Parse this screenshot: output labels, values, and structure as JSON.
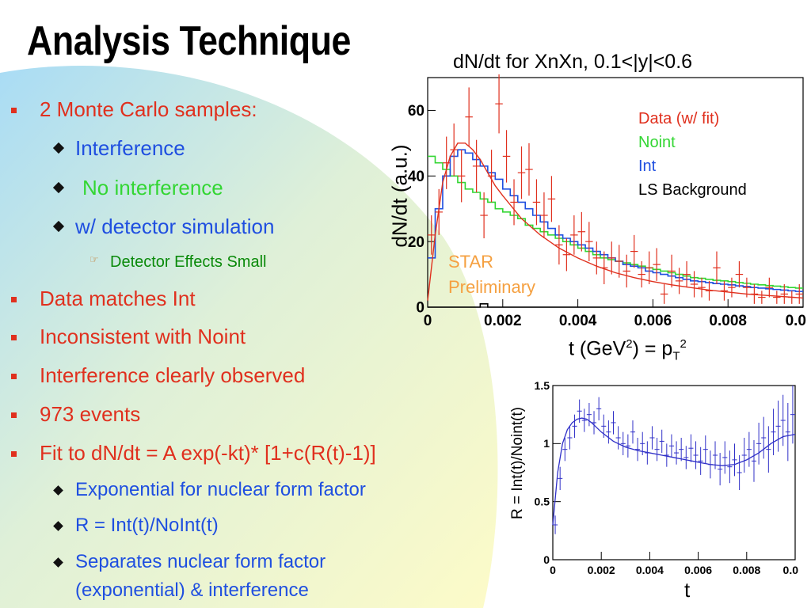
{
  "slide": {
    "title": "Analysis Technique",
    "bullets": {
      "b1": "2 Monte Carlo samples:",
      "b1a": "Interference",
      "b1b": "No interference",
      "b1c": "w/ detector simulation",
      "b1c_i": "Detector Effects Small",
      "b2": "Data matches Int",
      "b3": "Inconsistent with Noint",
      "b4": "Interference clearly observed",
      "b5": "973 events",
      "b6": "Fit to dN/dt = A exp(-kt)* [1+c(R(t)-1)]",
      "b6a": "Exponential for nuclear form factor",
      "b6b": "R = Int(t)/NoInt(t)",
      "b6c1": "Separates nuclear form factor",
      "b6c2": "(exponential) & interference"
    },
    "colors": {
      "red": "#e0301e",
      "blue": "#1f4fe0",
      "green": "#33d633",
      "dark_green": "#0a8a0a",
      "orange": "#f5a040"
    }
  },
  "chart_data": [
    {
      "type": "line",
      "title": "dN/dt for XnXn, 0.1<|y|<0.6",
      "xlabel": "t (GeV²) = pT²",
      "ylabel": "dN/dt (a.u.)",
      "xlim": [
        0,
        0.01
      ],
      "ylim": [
        0,
        70
      ],
      "x_ticks": [
        "0",
        "0.002",
        "0.004",
        "0.006",
        "0.008",
        "0.0"
      ],
      "y_ticks": [
        "0",
        "20",
        "40",
        "60"
      ],
      "legend": [
        "Data (w/ fit)",
        "Noint",
        "Int",
        "LS Background"
      ],
      "annotation": [
        "STAR",
        "Preliminary"
      ],
      "series": [
        {
          "name": "Data (w/ fit)",
          "color": "#e0301e",
          "points": [
            [
              0.0001,
              22,
              6
            ],
            [
              0.0003,
              29,
              7
            ],
            [
              0.0005,
              44,
              8
            ],
            [
              0.0007,
              48,
              8
            ],
            [
              0.0009,
              40,
              8
            ],
            [
              0.0011,
              58,
              9
            ],
            [
              0.0013,
              43,
              8
            ],
            [
              0.0015,
              28,
              7
            ],
            [
              0.0017,
              40,
              8
            ],
            [
              0.0019,
              62,
              9
            ],
            [
              0.0021,
              46,
              8
            ],
            [
              0.0023,
              32,
              7
            ],
            [
              0.0025,
              41,
              8
            ],
            [
              0.0027,
              42,
              8
            ],
            [
              0.0029,
              32,
              7
            ],
            [
              0.0031,
              28,
              7
            ],
            [
              0.0033,
              33,
              7
            ],
            [
              0.0035,
              19,
              6
            ],
            [
              0.0037,
              16,
              5
            ],
            [
              0.0039,
              22,
              6
            ],
            [
              0.0041,
              23,
              6
            ],
            [
              0.0043,
              20,
              6
            ],
            [
              0.0045,
              15,
              5
            ],
            [
              0.0047,
              12,
              5
            ],
            [
              0.0049,
              15,
              5
            ],
            [
              0.0051,
              14,
              5
            ],
            [
              0.0053,
              11,
              5
            ],
            [
              0.0055,
              17,
              5
            ],
            [
              0.0057,
              10,
              4
            ],
            [
              0.0059,
              12,
              5
            ],
            [
              0.0061,
              13,
              5
            ],
            [
              0.0063,
              4,
              3
            ],
            [
              0.0065,
              11,
              5
            ],
            [
              0.0067,
              8,
              4
            ],
            [
              0.0069,
              10,
              4
            ],
            [
              0.0071,
              7,
              4
            ],
            [
              0.0073,
              6,
              3
            ],
            [
              0.0075,
              5,
              3
            ],
            [
              0.0077,
              12,
              5
            ],
            [
              0.0079,
              5,
              3
            ],
            [
              0.0081,
              6,
              3
            ],
            [
              0.0083,
              10,
              4
            ],
            [
              0.0085,
              6,
              3
            ],
            [
              0.0087,
              4,
              3
            ],
            [
              0.0089,
              3,
              2
            ],
            [
              0.0091,
              6,
              3
            ],
            [
              0.0093,
              3,
              2
            ],
            [
              0.0095,
              4,
              3
            ],
            [
              0.0097,
              3,
              2
            ],
            [
              0.0099,
              4,
              3
            ]
          ],
          "fit": [
            [
              0,
              2
            ],
            [
              0.0002,
              22
            ],
            [
              0.0004,
              38
            ],
            [
              0.0006,
              46
            ],
            [
              0.0008,
              50
            ],
            [
              0.001,
              50
            ],
            [
              0.0012,
              48
            ],
            [
              0.0014,
              45
            ],
            [
              0.0016,
              41
            ],
            [
              0.0018,
              37
            ],
            [
              0.002,
              34
            ],
            [
              0.0025,
              27
            ],
            [
              0.003,
              22
            ],
            [
              0.0035,
              18
            ],
            [
              0.004,
              15
            ],
            [
              0.0045,
              12.5
            ],
            [
              0.005,
              10.5
            ],
            [
              0.0055,
              9
            ],
            [
              0.006,
              7.8
            ],
            [
              0.0065,
              6.8
            ],
            [
              0.007,
              6
            ],
            [
              0.0075,
              5.2
            ],
            [
              0.008,
              4.6
            ],
            [
              0.0085,
              4
            ],
            [
              0.009,
              3.6
            ],
            [
              0.0095,
              3.2
            ],
            [
              0.01,
              2.8
            ]
          ]
        },
        {
          "name": "Noint",
          "color": "#33d633",
          "values": [
            46,
            44,
            42,
            40,
            38,
            36,
            35,
            33,
            32,
            30,
            29,
            28,
            27,
            25,
            24,
            23,
            22,
            21,
            20,
            19,
            18,
            17,
            16,
            15,
            14.5,
            14,
            13.5,
            13,
            12.5,
            12,
            11.5,
            11,
            10.5,
            10,
            9.5,
            9,
            8.8,
            8.5,
            8.2,
            8,
            7.8,
            7.5,
            7.3,
            7,
            6.8,
            6.6,
            6.4,
            6.2,
            6,
            5.8
          ]
        },
        {
          "name": "Int",
          "color": "#1f4fe0",
          "values": [
            15,
            30,
            40,
            46,
            48,
            47,
            45,
            43,
            41,
            39,
            36,
            34,
            32,
            30,
            28,
            26,
            24,
            22,
            21,
            20,
            19,
            18,
            17,
            16,
            15,
            14,
            13,
            12.5,
            12,
            11,
            10.5,
            10,
            9.5,
            9,
            8.5,
            8,
            7.8,
            7.5,
            7.2,
            7,
            6.8,
            6.5,
            6.3,
            6,
            5.8,
            5.6,
            5.4,
            5.2,
            5,
            4.8
          ]
        },
        {
          "name": "LS Background",
          "color": "#000000",
          "values": [
            0,
            0,
            0,
            0,
            0,
            0,
            0,
            1,
            0,
            0,
            0,
            0,
            0,
            0,
            0,
            0,
            0,
            0,
            0,
            0,
            0,
            0,
            0,
            0,
            0,
            0,
            0,
            0,
            0,
            0,
            0,
            0,
            0,
            0,
            0,
            0,
            0,
            0,
            0,
            0,
            0,
            0,
            0,
            0,
            0,
            0,
            0,
            0,
            0,
            0
          ]
        }
      ]
    },
    {
      "type": "scatter",
      "xlabel": "t",
      "ylabel": "R = Int(t)/Noint(t)",
      "xlim": [
        0,
        0.01
      ],
      "ylim": [
        0,
        1.5
      ],
      "x_ticks": [
        "0",
        "0.002",
        "0.004",
        "0.006",
        "0.008",
        "0.0"
      ],
      "y_ticks": [
        "0",
        "0.5",
        "1",
        "1.5"
      ],
      "series": [
        {
          "color": "#3030c8",
          "points": [
            [
              0.0001,
              0.3,
              0.08
            ],
            [
              0.0003,
              0.7,
              0.1
            ],
            [
              0.0005,
              0.95,
              0.1
            ],
            [
              0.0007,
              1.05,
              0.1
            ],
            [
              0.0009,
              1.15,
              0.1
            ],
            [
              0.0011,
              1.28,
              0.1
            ],
            [
              0.0013,
              1.2,
              0.1
            ],
            [
              0.0015,
              1.25,
              0.1
            ],
            [
              0.0017,
              1.18,
              0.1
            ],
            [
              0.0019,
              1.3,
              0.1
            ],
            [
              0.0021,
              1.15,
              0.1
            ],
            [
              0.0023,
              1.1,
              0.1
            ],
            [
              0.0025,
              1.18,
              0.1
            ],
            [
              0.0027,
              1.05,
              0.1
            ],
            [
              0.0029,
              1.0,
              0.1
            ],
            [
              0.0031,
              0.98,
              0.1
            ],
            [
              0.0033,
              1.1,
              0.1
            ],
            [
              0.0035,
              0.95,
              0.1
            ],
            [
              0.0037,
              1.0,
              0.1
            ],
            [
              0.0039,
              0.92,
              0.1
            ],
            [
              0.0041,
              1.05,
              0.1
            ],
            [
              0.0043,
              0.95,
              0.1
            ],
            [
              0.0045,
              1.02,
              0.1
            ],
            [
              0.0047,
              0.9,
              0.1
            ],
            [
              0.0049,
              0.98,
              0.1
            ],
            [
              0.0051,
              0.92,
              0.1
            ],
            [
              0.0053,
              0.95,
              0.1
            ],
            [
              0.0055,
              0.88,
              0.1
            ],
            [
              0.0057,
              0.96,
              0.12
            ],
            [
              0.0059,
              0.9,
              0.12
            ],
            [
              0.0061,
              0.85,
              0.12
            ],
            [
              0.0063,
              0.95,
              0.12
            ],
            [
              0.0065,
              0.82,
              0.12
            ],
            [
              0.0067,
              0.9,
              0.12
            ],
            [
              0.0069,
              0.78,
              0.14
            ],
            [
              0.0071,
              0.88,
              0.14
            ],
            [
              0.0073,
              0.8,
              0.14
            ],
            [
              0.0075,
              0.86,
              0.14
            ],
            [
              0.0077,
              0.75,
              0.15
            ],
            [
              0.0079,
              0.9,
              0.15
            ],
            [
              0.0081,
              0.95,
              0.15
            ],
            [
              0.0083,
              0.85,
              0.18
            ],
            [
              0.0085,
              1.0,
              0.18
            ],
            [
              0.0087,
              1.05,
              0.18
            ],
            [
              0.0089,
              0.95,
              0.2
            ],
            [
              0.0091,
              1.1,
              0.2
            ],
            [
              0.0093,
              1.15,
              0.22
            ],
            [
              0.0095,
              1.2,
              0.22
            ],
            [
              0.0097,
              1.1,
              0.25
            ],
            [
              0.0099,
              1.25,
              0.25
            ]
          ],
          "fit": [
            [
              0,
              0.3
            ],
            [
              0.0002,
              0.75
            ],
            [
              0.0004,
              1.0
            ],
            [
              0.0006,
              1.12
            ],
            [
              0.0008,
              1.18
            ],
            [
              0.001,
              1.21
            ],
            [
              0.0012,
              1.22
            ],
            [
              0.0014,
              1.21
            ],
            [
              0.0016,
              1.18
            ],
            [
              0.0018,
              1.14
            ],
            [
              0.002,
              1.1
            ],
            [
              0.0025,
              1.02
            ],
            [
              0.003,
              0.97
            ],
            [
              0.0035,
              0.94
            ],
            [
              0.004,
              0.92
            ],
            [
              0.0045,
              0.9
            ],
            [
              0.005,
              0.88
            ],
            [
              0.0055,
              0.86
            ],
            [
              0.006,
              0.84
            ],
            [
              0.0065,
              0.82
            ],
            [
              0.007,
              0.81
            ],
            [
              0.0075,
              0.82
            ],
            [
              0.008,
              0.86
            ],
            [
              0.0085,
              0.92
            ],
            [
              0.009,
              1.0
            ],
            [
              0.0095,
              1.06
            ],
            [
              0.01,
              1.08
            ]
          ]
        }
      ]
    }
  ]
}
